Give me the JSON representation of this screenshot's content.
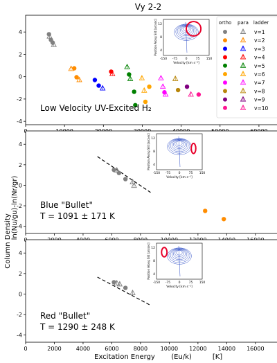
{
  "figure": {
    "title": "Vy 2-2",
    "ylabel": "Column Density",
    "ylabel_sub": "ln(Nu/gu)-ln(Nr/gr)",
    "xlabel": "Excitation Energy",
    "xlabel_unit_expr": "(Eu/k)",
    "xlabel_unit": "[K]"
  },
  "legend": {
    "headers": [
      "ortho",
      "para",
      "ladder"
    ],
    "rows": [
      {
        "label": "v=1",
        "color": "#808080"
      },
      {
        "label": "v=2",
        "color": "#ff8c00"
      },
      {
        "label": "v=3",
        "color": "#0000ff"
      },
      {
        "label": "v=4",
        "color": "#ff0000"
      },
      {
        "label": "v=5",
        "color": "#008000"
      },
      {
        "label": "v=6",
        "color": "#ffa500"
      },
      {
        "label": "v=7",
        "color": "#ff00ff"
      },
      {
        "label": "v=8",
        "color": "#b8860b"
      },
      {
        "label": "v=9",
        "color": "#800080"
      },
      {
        "label": "v=10",
        "color": "#ff1493"
      }
    ]
  },
  "inset": {
    "xlabel": "Velocity [km s⁻¹]",
    "ylabel": "Position Along Slit [arcsec]",
    "xticks": [
      "-150",
      "-75",
      "0",
      "75",
      "150"
    ],
    "yticks": [
      "12",
      "8",
      "4"
    ]
  },
  "chart_data": [
    {
      "type": "scatter",
      "panel": "low-velocity",
      "annotation": "Low Velocity UV-Excited H₂",
      "xlim": [
        0,
        65000
      ],
      "ylim": [
        -4.3,
        5.5
      ],
      "xticks": [
        0,
        10000,
        20000,
        30000,
        40000,
        50000,
        60000
      ],
      "yticks": [
        -4,
        -2,
        0,
        2,
        4
      ],
      "series": [
        {
          "name": "v=1",
          "color": "#808080",
          "points": [
            {
              "x": 6000,
              "y": 3.8,
              "o": true
            },
            {
              "x": 6150,
              "y": 3.6,
              "o": false
            },
            {
              "x": 6500,
              "y": 3.3,
              "o": true
            },
            {
              "x": 6950,
              "y": 3.05,
              "o": true
            },
            {
              "x": 7250,
              "y": 2.85,
              "o": false
            }
          ]
        },
        {
          "name": "v=2",
          "color": "#ff8c00",
          "points": [
            {
              "x": 11700,
              "y": 0.7,
              "o": false
            },
            {
              "x": 12500,
              "y": 0.75,
              "o": true
            },
            {
              "x": 13100,
              "y": -0.05,
              "o": true
            },
            {
              "x": 13800,
              "y": -0.3,
              "o": false
            }
          ]
        },
        {
          "name": "v=3",
          "color": "#0000ff",
          "points": [
            {
              "x": 17800,
              "y": -0.3,
              "o": true
            },
            {
              "x": 18800,
              "y": -0.8,
              "o": true
            },
            {
              "x": 19800,
              "y": -1.05,
              "o": false
            }
          ]
        },
        {
          "name": "v=4",
          "color": "#ff0000",
          "points": [
            {
              "x": 22000,
              "y": 0.45,
              "o": true
            },
            {
              "x": 22300,
              "y": 0.25,
              "o": false
            }
          ]
        },
        {
          "name": "v=5",
          "color": "#008000",
          "points": [
            {
              "x": 26100,
              "y": 0.85,
              "o": false
            },
            {
              "x": 26600,
              "y": 0.2,
              "o": true
            },
            {
              "x": 26900,
              "y": -0.2,
              "o": false
            },
            {
              "x": 27900,
              "y": -1.35,
              "o": true
            },
            {
              "x": 28200,
              "y": -2.55,
              "o": true
            }
          ]
        },
        {
          "name": "v=6",
          "color": "#ffa500",
          "points": [
            {
              "x": 29900,
              "y": -0.15,
              "o": false
            },
            {
              "x": 30500,
              "y": -1.25,
              "o": false
            },
            {
              "x": 30800,
              "y": -2.25,
              "o": true
            },
            {
              "x": 31800,
              "y": -0.9,
              "o": true
            }
          ]
        },
        {
          "name": "v=7",
          "color": "#ff00ff",
          "points": [
            {
              "x": 34800,
              "y": -0.15,
              "o": false
            },
            {
              "x": 35300,
              "y": -0.9,
              "o": false
            },
            {
              "x": 35700,
              "y": -1.4,
              "o": true
            },
            {
              "x": 36000,
              "y": -1.6,
              "o": false
            }
          ]
        },
        {
          "name": "v=8",
          "color": "#b8860b",
          "points": [
            {
              "x": 38500,
              "y": -0.2,
              "o": false
            },
            {
              "x": 39200,
              "y": -1.2,
              "o": true
            }
          ]
        },
        {
          "name": "v=9",
          "color": "#800080",
          "points": [
            {
              "x": 41500,
              "y": -0.9,
              "o": true
            }
          ]
        },
        {
          "name": "v=10",
          "color": "#ff1493",
          "points": [
            {
              "x": 42500,
              "y": -1.6,
              "o": false
            },
            {
              "x": 44500,
              "y": -1.6,
              "o": true
            }
          ]
        }
      ]
    },
    {
      "type": "scatter",
      "panel": "blue-bullet",
      "annotation_line1": "Blue \"Bullet\"",
      "annotation_line2": "T = 1091 ± 171 K",
      "xlim": [
        0,
        17600
      ],
      "ylim": [
        -4.7,
        5.3
      ],
      "xticks": [
        0,
        2000,
        4000,
        6000,
        8000,
        10000,
        12000,
        14000,
        16000
      ],
      "yticks": [
        -4,
        -2,
        0,
        2,
        4
      ],
      "fit_line": {
        "x1": 5000,
        "y1": 2.8,
        "x2": 8700,
        "y2": -0.7
      },
      "series": [
        {
          "name": "v=1",
          "color": "#808080",
          "points": [
            {
              "x": 6150,
              "y": 1.5,
              "o": true
            },
            {
              "x": 6350,
              "y": 1.45,
              "o": false
            },
            {
              "x": 6500,
              "y": 1.2,
              "o": true
            },
            {
              "x": 6950,
              "y": 0.6,
              "o": true
            },
            {
              "x": 7450,
              "y": 0.3,
              "o": false
            },
            {
              "x": 7550,
              "y": -0.05,
              "o": false
            }
          ]
        },
        {
          "name": "v=2",
          "color": "#ff8c00",
          "points": [
            {
              "x": 12500,
              "y": -2.5,
              "o": true
            },
            {
              "x": 13800,
              "y": -3.3,
              "o": true
            }
          ]
        }
      ]
    },
    {
      "type": "scatter",
      "panel": "red-bullet",
      "annotation_line1": "Red \"Bullet\"",
      "annotation_line2": "T = 1290 ± 248 K",
      "xlim": [
        0,
        17600
      ],
      "ylim": [
        -4.7,
        5.3
      ],
      "xticks": [
        0,
        2000,
        4000,
        6000,
        8000,
        10000,
        12000,
        14000,
        16000
      ],
      "yticks": [
        -4,
        -2,
        0,
        2,
        4
      ],
      "fit_line": {
        "x1": 5000,
        "y1": 1.65,
        "x2": 8700,
        "y2": -1.1
      },
      "series": [
        {
          "name": "v=1",
          "color": "#808080",
          "points": [
            {
              "x": 6150,
              "y": 1.15,
              "o": true
            },
            {
              "x": 6350,
              "y": 1.05,
              "o": false
            },
            {
              "x": 6550,
              "y": 0.95,
              "o": false
            },
            {
              "x": 6950,
              "y": 0.6,
              "o": true
            },
            {
              "x": 7450,
              "y": 0.1,
              "o": false
            }
          ]
        }
      ]
    }
  ]
}
